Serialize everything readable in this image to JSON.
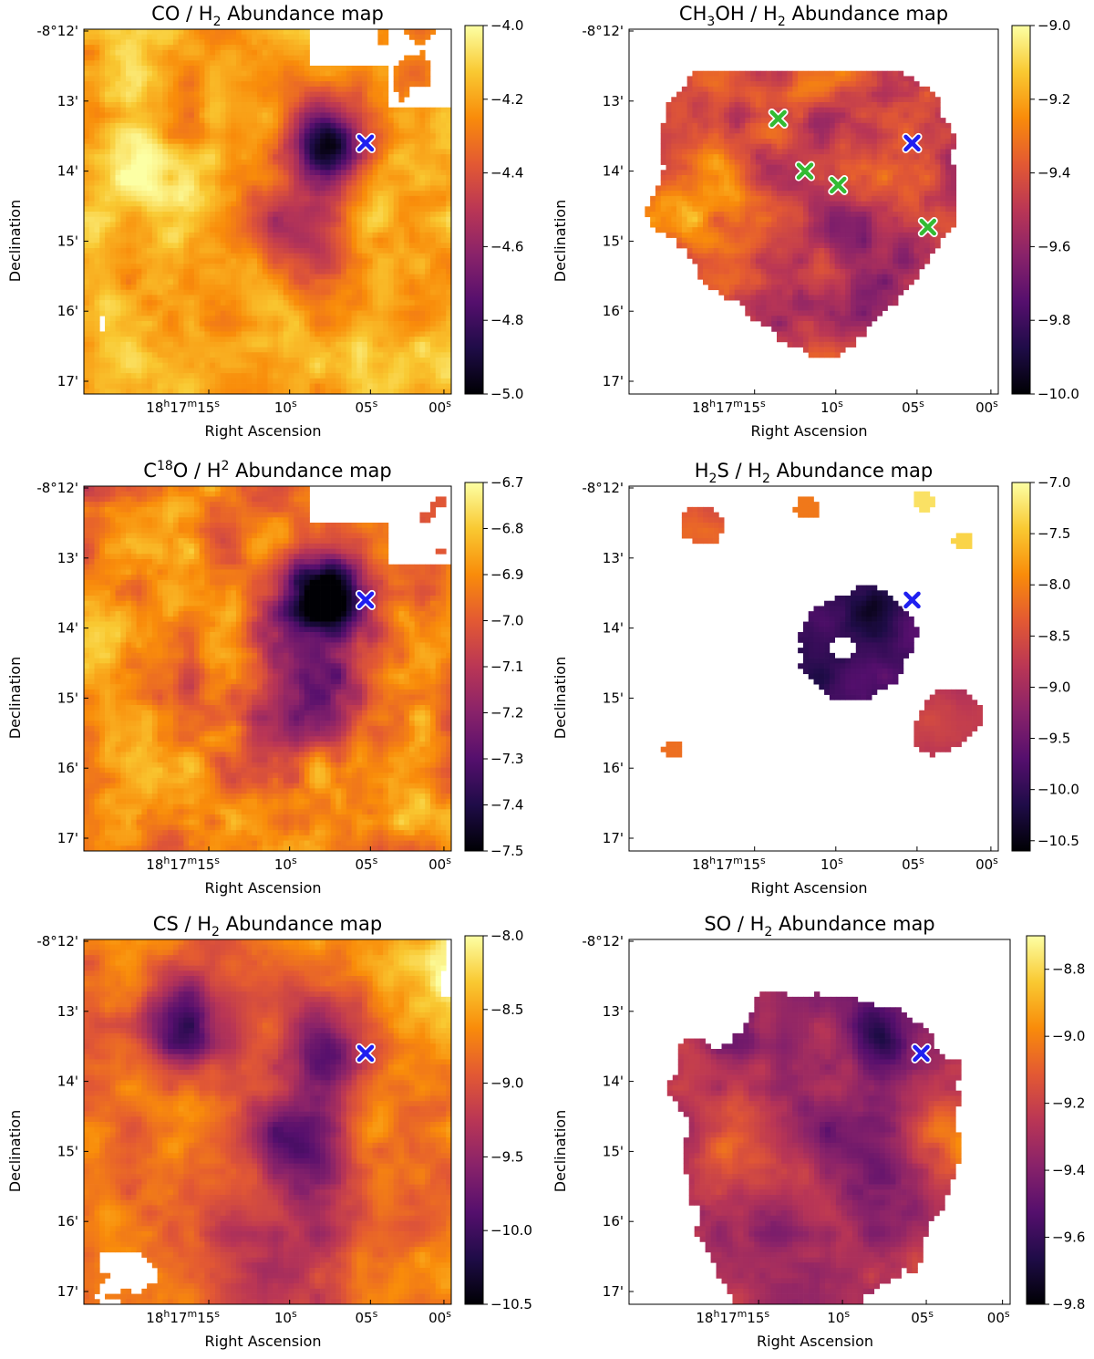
{
  "figure": {
    "description_domain": "abundance maps",
    "marker_colors": {
      "main": "#1f1ff0",
      "secondary": "#33bb33",
      "outline": "#ffffff"
    },
    "colormap": [
      "#000004",
      "#1f0c48",
      "#550f6d",
      "#88226a",
      "#ba3655",
      "#e35933",
      "#f98c0a",
      "#f9c932",
      "#fcffa4"
    ]
  },
  "chart_data": [
    {
      "type": "heatmap",
      "id": "co",
      "title_parts": [
        "CO / H",
        "2",
        " Abundance map"
      ],
      "xlabel": "Right Ascension",
      "ylabel": "Declination",
      "x_ticks": [
        {
          "pre": "18",
          "h": "h",
          "m_num": "17",
          "m": "m",
          "s_num": "15",
          "s": "s"
        },
        {
          "pre": "",
          "h": "",
          "m_num": "",
          "m": "",
          "s_num": "10",
          "s": "s"
        },
        {
          "pre": "",
          "h": "",
          "m_num": "",
          "m": "",
          "s_num": "05",
          "s": "s"
        },
        {
          "pre": "",
          "h": "",
          "m_num": "",
          "m": "",
          "s_num": "00",
          "s": "s"
        }
      ],
      "y_ticks": [
        "-8°12'",
        "13'",
        "14'",
        "15'",
        "16'",
        "17'"
      ],
      "colorbar": {
        "range": [
          -5.0,
          -4.0
        ],
        "ticks": [
          "−4.0",
          "−4.2",
          "−4.4",
          "−4.6",
          "−4.8",
          "−5.0"
        ]
      },
      "markers": [
        {
          "color": "main",
          "ra_offset_s": 5.0,
          "dec_offset_min": 13.6
        }
      ],
      "field_style": "co"
    },
    {
      "type": "heatmap",
      "id": "ch3oh",
      "title_parts": [
        "CH",
        "3",
        "OH / H",
        "2",
        " Abundance map"
      ],
      "xlabel": "Right Ascension",
      "ylabel": "Declination",
      "x_ticks": [
        {
          "pre": "18",
          "h": "h",
          "m_num": "17",
          "m": "m",
          "s_num": "15",
          "s": "s"
        },
        {
          "pre": "",
          "h": "",
          "m_num": "",
          "m": "",
          "s_num": "10",
          "s": "s"
        },
        {
          "pre": "",
          "h": "",
          "m_num": "",
          "m": "",
          "s_num": "05",
          "s": "s"
        },
        {
          "pre": "",
          "h": "",
          "m_num": "",
          "m": "",
          "s_num": "00",
          "s": "s"
        }
      ],
      "y_ticks": [
        "-8°12'",
        "13'",
        "14'",
        "15'",
        "16'",
        "17'"
      ],
      "colorbar": {
        "range": [
          -10.0,
          -9.0
        ],
        "ticks": [
          "−9.0",
          "−9.2",
          "−9.4",
          "−9.6",
          "−9.8",
          "−10.0"
        ]
      },
      "markers": [
        {
          "color": "main",
          "ra_offset_s": 5.0,
          "dec_offset_min": 13.6
        },
        {
          "color": "secondary",
          "ra_offset_s": 13.5,
          "dec_offset_min": 13.25
        },
        {
          "color": "secondary",
          "ra_offset_s": 11.8,
          "dec_offset_min": 14.0
        },
        {
          "color": "secondary",
          "ra_offset_s": 9.7,
          "dec_offset_min": 14.2
        },
        {
          "color": "secondary",
          "ra_offset_s": 4.0,
          "dec_offset_min": 14.8
        }
      ],
      "field_style": "ch3oh"
    },
    {
      "type": "heatmap",
      "id": "c18o",
      "title_parts": [
        "C",
        "18",
        "O / H",
        "2",
        " Abundance map"
      ],
      "xlabel": "Right Ascension",
      "ylabel": "Declination",
      "x_ticks": [
        {
          "pre": "18",
          "h": "h",
          "m_num": "17",
          "m": "m",
          "s_num": "15",
          "s": "s"
        },
        {
          "pre": "",
          "h": "",
          "m_num": "",
          "m": "",
          "s_num": "10",
          "s": "s"
        },
        {
          "pre": "",
          "h": "",
          "m_num": "",
          "m": "",
          "s_num": "05",
          "s": "s"
        },
        {
          "pre": "",
          "h": "",
          "m_num": "",
          "m": "",
          "s_num": "00",
          "s": "s"
        }
      ],
      "y_ticks": [
        "-8°12'",
        "13'",
        "14'",
        "15'",
        "16'",
        "17'"
      ],
      "colorbar": {
        "range": [
          -7.5,
          -6.7
        ],
        "ticks": [
          "−6.7",
          "−6.8",
          "−6.9",
          "−7.0",
          "−7.1",
          "−7.2",
          "−7.3",
          "−7.4",
          "−7.5"
        ]
      },
      "markers": [
        {
          "color": "main",
          "ra_offset_s": 5.0,
          "dec_offset_min": 13.6
        }
      ],
      "field_style": "c18o"
    },
    {
      "type": "heatmap",
      "id": "h2s",
      "title_parts": [
        "H",
        "2",
        "S / H",
        "2",
        " Abundance map"
      ],
      "xlabel": "Right Ascension",
      "ylabel": "Declination",
      "x_ticks": [
        {
          "pre": "18",
          "h": "h",
          "m_num": "17",
          "m": "m",
          "s_num": "15",
          "s": "s"
        },
        {
          "pre": "",
          "h": "",
          "m_num": "",
          "m": "",
          "s_num": "10",
          "s": "s"
        },
        {
          "pre": "",
          "h": "",
          "m_num": "",
          "m": "",
          "s_num": "05",
          "s": "s"
        },
        {
          "pre": "",
          "h": "",
          "m_num": "",
          "m": "",
          "s_num": "00",
          "s": "s"
        }
      ],
      "y_ticks": [
        "-8°12'",
        "13'",
        "14'",
        "15'",
        "16'",
        "17'"
      ],
      "colorbar": {
        "range": [
          -10.6,
          -7.0
        ],
        "ticks": [
          "−7.0",
          "−7.5",
          "−8.0",
          "−8.5",
          "−9.0",
          "−9.5",
          "−10.0",
          "−10.5"
        ]
      },
      "markers": [
        {
          "color": "main",
          "ra_offset_s": 5.0,
          "dec_offset_min": 13.6
        }
      ],
      "field_style": "h2s"
    },
    {
      "type": "heatmap",
      "id": "cs",
      "title_parts": [
        "CS / H",
        "2",
        " Abundance map"
      ],
      "xlabel": "Right Ascension",
      "ylabel": "Declination",
      "x_ticks": [
        {
          "pre": "18",
          "h": "h",
          "m_num": "17",
          "m": "m",
          "s_num": "15",
          "s": "s"
        },
        {
          "pre": "",
          "h": "",
          "m_num": "",
          "m": "",
          "s_num": "10",
          "s": "s"
        },
        {
          "pre": "",
          "h": "",
          "m_num": "",
          "m": "",
          "s_num": "05",
          "s": "s"
        },
        {
          "pre": "",
          "h": "",
          "m_num": "",
          "m": "",
          "s_num": "00",
          "s": "s"
        }
      ],
      "y_ticks": [
        "-8°12'",
        "13'",
        "14'",
        "15'",
        "16'",
        "17'"
      ],
      "colorbar": {
        "range": [
          -10.5,
          -8.0
        ],
        "ticks": [
          "−8.0",
          "−8.5",
          "−9.0",
          "−9.5",
          "−10.0",
          "−10.5"
        ]
      },
      "markers": [
        {
          "color": "main",
          "ra_offset_s": 5.0,
          "dec_offset_min": 13.6
        }
      ],
      "field_style": "cs"
    },
    {
      "type": "heatmap",
      "id": "so",
      "title_parts": [
        "SO / H",
        "2",
        " Abundance map"
      ],
      "xlabel": "Right Ascension",
      "ylabel": "Declination",
      "x_ticks": [
        {
          "pre": "18",
          "h": "h",
          "m_num": "17",
          "m": "m",
          "s_num": "15",
          "s": "s"
        },
        {
          "pre": "",
          "h": "",
          "m_num": "",
          "m": "",
          "s_num": "10",
          "s": "s"
        },
        {
          "pre": "",
          "h": "",
          "m_num": "",
          "m": "",
          "s_num": "05",
          "s": "s"
        },
        {
          "pre": "",
          "h": "",
          "m_num": "",
          "m": "",
          "s_num": "00",
          "s": "s"
        }
      ],
      "y_ticks": [
        "-8°12'",
        "13'",
        "14'",
        "15'",
        "16'",
        "17'"
      ],
      "colorbar": {
        "range": [
          -9.8,
          -8.7
        ],
        "ticks": [
          "−8.8",
          "−9.0",
          "−9.2",
          "−9.4",
          "−9.6",
          "−9.8"
        ]
      },
      "markers": [
        {
          "color": "main",
          "ra_offset_s": 5.0,
          "dec_offset_min": 13.6
        }
      ],
      "field_style": "so"
    }
  ]
}
